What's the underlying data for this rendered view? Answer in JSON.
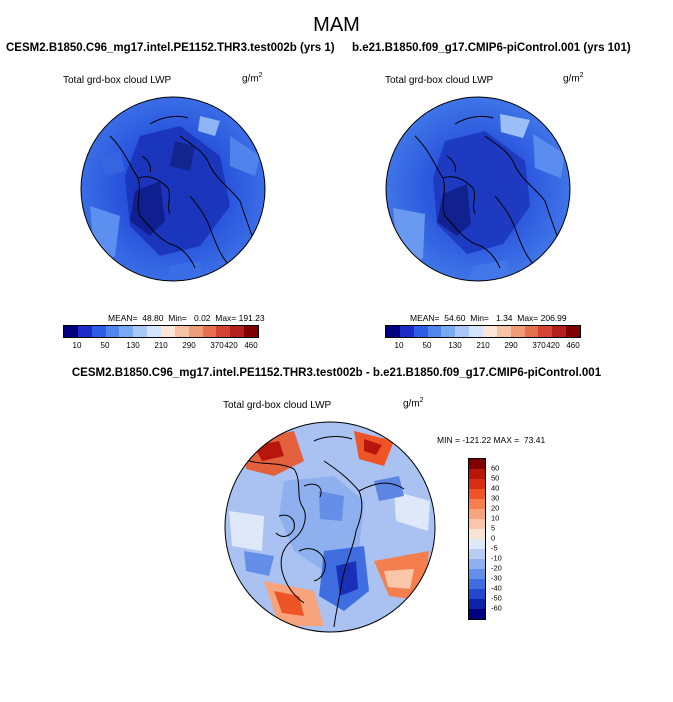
{
  "figure": {
    "season": "MAM",
    "panels": [
      {
        "run": "CESM2.B1850.C96_mg17.intel.PE1152.THR3.test002b (yrs 1)",
        "variable": "Total grd-box cloud LWP",
        "units_base": "g/m",
        "units_exp": "2",
        "stats": "MEAN=  48.80  Min=   0.02  Max= 191.23"
      },
      {
        "run": "b.e21.B1850.f09_g17.CMIP6-piControl.001 (yrs 101)",
        "variable": "Total grd-box cloud LWP",
        "units_base": "g/m",
        "units_exp": "2",
        "stats": "MEAN=  54.60  Min=   1.34  Max= 206.99"
      }
    ],
    "difference": {
      "title": "CESM2.B1850.C96_mg17.intel.PE1152.THR3.test002b - b.e21.B1850.f09_g17.CMIP6-piControl.001",
      "variable": "Total grd-box cloud LWP",
      "units_base": "g/m",
      "units_exp": "2",
      "stats": "MIN = -121.22 MAX =  73.41"
    },
    "abs_colorbar": {
      "ticks": [
        "10",
        "50",
        "130",
        "210",
        "290",
        "370",
        "420",
        "460"
      ],
      "colors": [
        "#00007e",
        "#1b2cc8",
        "#2f5de6",
        "#4f86ee",
        "#7aa9f3",
        "#a9c8f7",
        "#d3e3fa",
        "#fbe6d8",
        "#f6c2a4",
        "#ef9b78",
        "#e5704f",
        "#d44433",
        "#b31f1c",
        "#7e0000"
      ]
    },
    "diff_colorbar": {
      "ticks": [
        "60",
        "50",
        "40",
        "30",
        "20",
        "10",
        "5",
        "0",
        "-5",
        "-10",
        "-20",
        "-30",
        "-40",
        "-50",
        "-60"
      ],
      "colors": [
        "#7e0000",
        "#b8160c",
        "#d92d14",
        "#ee5526",
        "#f47e4e",
        "#f7a37c",
        "#f9c6aa",
        "#fbe3d4",
        "#dfe8f8",
        "#b9cdf3",
        "#8fb0ee",
        "#648fe8",
        "#3f6ee0",
        "#2248cf",
        "#0c23a8",
        "#00007e"
      ]
    }
  }
}
